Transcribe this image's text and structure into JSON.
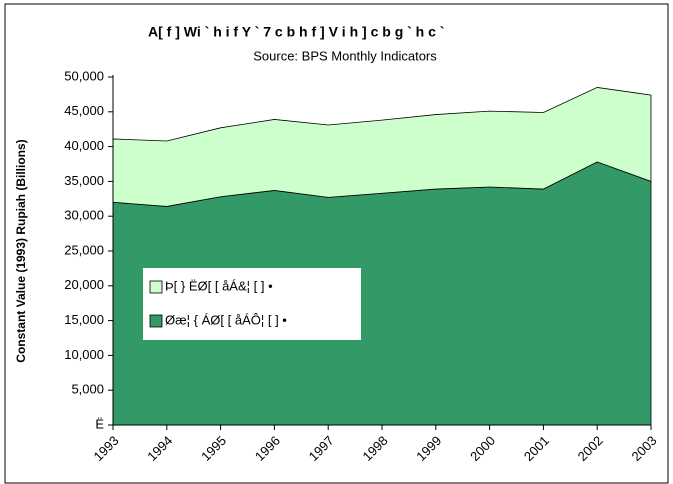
{
  "chart_data": {
    "type": "stacked_area",
    "title": "A[ f ] Wi ` h i f Y ` 7 c b h f ] V i h ] c b g ` h c `",
    "subtitle": "Source:  BPS Monthly Indicators",
    "y_label": "Constant Value (1993) Rupiah (Billions)",
    "categories": [
      "1993",
      "1994",
      "1995",
      "1996",
      "1997",
      "1998",
      "1999",
      "2000",
      "2001",
      "2002",
      "2003"
    ],
    "series": [
      {
        "name": "Þ[ } ËØ[ [ åÁ&¦ [ ] •",
        "color": "#ccffcc",
        "values": [
          9100,
          9400,
          9900,
          10200,
          10400,
          10500,
          10700,
          10900,
          11000,
          10700,
          12400
        ]
      },
      {
        "name": "Øæ¦ { ÁØ[ [ åÁÔ¦ [ ] •",
        "color": "#339966",
        "values": [
          32000,
          31400,
          32800,
          33700,
          32700,
          33300,
          33900,
          34200,
          33900,
          37800,
          35000
        ]
      }
    ],
    "ylim": [
      0,
      50000
    ],
    "yticks": [
      {
        "value": 0,
        "label": "Ë"
      },
      {
        "value": 5000,
        "label": "5,000"
      },
      {
        "value": 10000,
        "label": "10,000"
      },
      {
        "value": 15000,
        "label": "15,000"
      },
      {
        "value": 20000,
        "label": "20,000"
      },
      {
        "value": 25000,
        "label": "25,000"
      },
      {
        "value": 30000,
        "label": "30,000"
      },
      {
        "value": 35000,
        "label": "35,000"
      },
      {
        "value": 40000,
        "label": "40,000"
      },
      {
        "value": 45000,
        "label": "45,000"
      },
      {
        "value": 50000,
        "label": "50,000"
      }
    ],
    "grid": false
  }
}
